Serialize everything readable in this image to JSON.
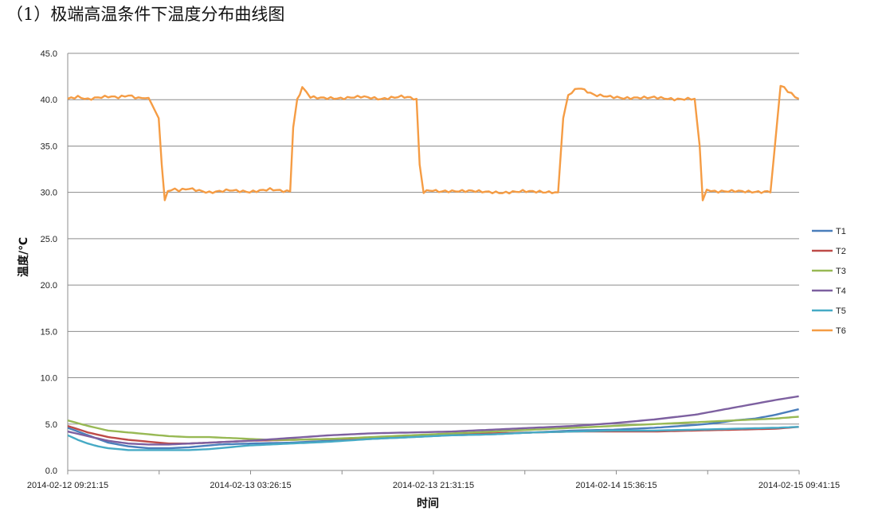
{
  "page": {
    "heading": "（1）极端高温条件下温度分布曲线图"
  },
  "chart_data": {
    "type": "line",
    "title": "",
    "xlabel": "时间",
    "ylabel": "温度/℃",
    "ylim": [
      0,
      45
    ],
    "y_ticks": [
      "0.0",
      "5.0",
      "10.0",
      "15.0",
      "20.0",
      "25.0",
      "30.0",
      "35.0",
      "40.0",
      "45.0"
    ],
    "x_range_hours": [
      0,
      72.333
    ],
    "x_tick_labels": [
      "2014-02-12 09:21:15",
      "2014-02-13 03:26:15",
      "2014-02-13 21:31:15",
      "2014-02-14 15:36:15",
      "2014-02-15 09:41:15"
    ],
    "grid": true,
    "legend_position": "right",
    "series": [
      {
        "name": "T1",
        "color": "#4a7ebb",
        "x": [
          0,
          2,
          4,
          6,
          8,
          10,
          12,
          15,
          18,
          22,
          26,
          30,
          34,
          38,
          42,
          46,
          50,
          54,
          58,
          62,
          64,
          66,
          68,
          70,
          72.3
        ],
        "y": [
          4.6,
          3.8,
          3.0,
          2.6,
          2.4,
          2.4,
          2.5,
          2.8,
          2.9,
          3.0,
          3.2,
          3.4,
          3.6,
          3.8,
          3.9,
          4.1,
          4.3,
          4.4,
          4.6,
          4.9,
          5.1,
          5.4,
          5.6,
          6.0,
          6.6
        ]
      },
      {
        "name": "T2",
        "color": "#be4b48",
        "x": [
          0,
          2,
          4,
          6,
          8,
          10,
          12,
          14,
          16,
          18,
          22,
          26,
          30,
          34,
          38,
          42,
          46,
          50,
          54,
          58,
          62,
          66,
          70,
          72.3
        ],
        "y": [
          4.8,
          4.1,
          3.6,
          3.3,
          3.1,
          2.9,
          2.9,
          3.0,
          3.1,
          3.2,
          3.3,
          3.4,
          3.5,
          3.7,
          3.9,
          4.0,
          4.1,
          4.2,
          4.2,
          4.2,
          4.3,
          4.4,
          4.5,
          4.7
        ]
      },
      {
        "name": "T3",
        "color": "#98b954",
        "x": [
          0,
          2,
          4,
          6,
          8,
          10,
          12,
          14,
          16,
          18,
          20,
          22,
          26,
          30,
          34,
          38,
          42,
          46,
          50,
          54,
          58,
          62,
          66,
          70,
          72.3
        ],
        "y": [
          5.4,
          4.8,
          4.3,
          4.1,
          3.9,
          3.7,
          3.6,
          3.6,
          3.5,
          3.4,
          3.3,
          3.3,
          3.4,
          3.6,
          3.8,
          4.0,
          4.2,
          4.4,
          4.6,
          4.8,
          5.0,
          5.2,
          5.4,
          5.6,
          5.8
        ]
      },
      {
        "name": "T4",
        "color": "#7d60a0",
        "x": [
          0,
          2,
          4,
          6,
          8,
          10,
          12,
          14,
          16,
          18,
          22,
          26,
          30,
          34,
          38,
          42,
          46,
          50,
          54,
          58,
          62,
          64,
          66,
          68,
          70,
          72.3
        ],
        "y": [
          4.2,
          3.7,
          3.2,
          2.9,
          2.8,
          2.8,
          2.9,
          3.0,
          3.1,
          3.2,
          3.5,
          3.8,
          4.0,
          4.1,
          4.2,
          4.4,
          4.6,
          4.8,
          5.1,
          5.5,
          6.0,
          6.4,
          6.8,
          7.2,
          7.6,
          8.0
        ]
      },
      {
        "name": "T5",
        "color": "#46aac5",
        "x": [
          0,
          1,
          2,
          3,
          4,
          5,
          6,
          8,
          10,
          12,
          14,
          16,
          18,
          20,
          22,
          26,
          30,
          34,
          38,
          42,
          46,
          50,
          54,
          58,
          62,
          66,
          70,
          72.3
        ],
        "y": [
          3.8,
          3.3,
          2.9,
          2.6,
          2.4,
          2.3,
          2.2,
          2.2,
          2.2,
          2.2,
          2.3,
          2.5,
          2.7,
          2.8,
          2.9,
          3.1,
          3.4,
          3.6,
          3.8,
          3.9,
          4.1,
          4.2,
          4.3,
          4.3,
          4.4,
          4.5,
          4.6,
          4.7
        ]
      },
      {
        "name": "T6",
        "color": "#f59c44",
        "x": [
          0,
          1,
          2,
          3,
          4,
          5,
          6,
          7,
          8,
          9,
          9.3,
          9.6,
          9.9,
          10.2,
          11,
          12,
          14,
          16,
          18,
          20,
          22,
          22.3,
          22.7,
          23.2,
          24,
          25,
          27,
          29,
          31,
          33,
          34.5,
          34.8,
          35.2,
          35.8,
          37,
          40,
          43,
          45,
          47,
          48.5,
          49,
          49.5,
          50.5,
          52,
          55,
          58,
          60,
          62,
          62.5,
          62.8,
          63.2,
          64,
          66,
          68,
          69.5,
          70.5,
          72.3
        ],
        "y": [
          40.1,
          40.3,
          40.0,
          40.2,
          40.3,
          40.2,
          40.4,
          40.1,
          40.2,
          38.0,
          33.0,
          29.0,
          30.1,
          30.3,
          30.2,
          30.4,
          30.0,
          30.3,
          30.1,
          30.4,
          30.1,
          37.0,
          40.0,
          41.4,
          40.3,
          40.2,
          40.1,
          40.3,
          40.0,
          40.3,
          40.1,
          33.0,
          30.0,
          30.3,
          30.1,
          30.2,
          30.0,
          30.2,
          30.1,
          30.0,
          38.0,
          40.5,
          41.3,
          40.5,
          40.1,
          40.2,
          40.0,
          40.1,
          35.0,
          29.2,
          30.2,
          30.1,
          30.2,
          30.1,
          30.0,
          41.5,
          40.1
        ]
      }
    ]
  }
}
